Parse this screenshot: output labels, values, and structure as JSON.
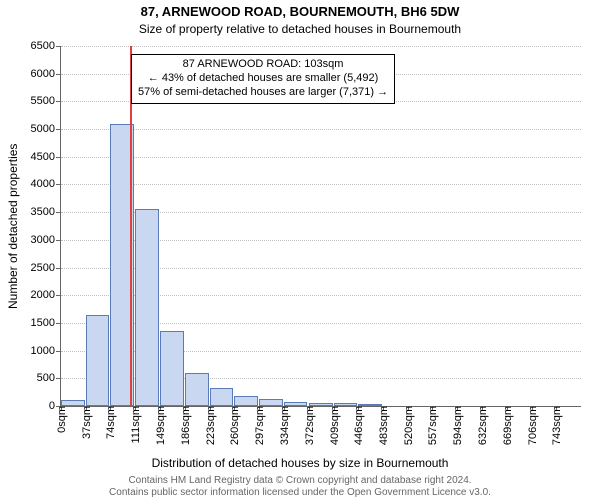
{
  "title_line1": "87, ARNEWOOD ROAD, BOURNEMOUTH, BH6 5DW",
  "title_line2": "Size of property relative to detached houses in Bournemouth",
  "ylabel": "Number of detached properties",
  "xlabel": "Distribution of detached houses by size in Bournemouth",
  "footer_line1": "Contains HM Land Registry data © Crown copyright and database right 2024.",
  "footer_line2": "Contains public sector information licensed under the Open Government Licence v3.0.",
  "title_fontsize": 13,
  "subtitle_fontsize": 12,
  "axis_label_fontsize": 12,
  "tick_fontsize": 11,
  "footer_fontsize": 10,
  "anno_fontsize": 11,
  "plot": {
    "x_min": 0,
    "x_max": 780,
    "y_min": 0,
    "y_max": 6500,
    "grid_color": "#bfbfbf",
    "axis_color": "#666666",
    "background": "#ffffff"
  },
  "x_ticks": [
    {
      "v": 0,
      "label": "0sqm"
    },
    {
      "v": 37,
      "label": "37sqm"
    },
    {
      "v": 74,
      "label": "74sqm"
    },
    {
      "v": 111,
      "label": "111sqm"
    },
    {
      "v": 149,
      "label": "149sqm"
    },
    {
      "v": 186,
      "label": "186sqm"
    },
    {
      "v": 223,
      "label": "223sqm"
    },
    {
      "v": 260,
      "label": "260sqm"
    },
    {
      "v": 297,
      "label": "297sqm"
    },
    {
      "v": 334,
      "label": "334sqm"
    },
    {
      "v": 372,
      "label": "372sqm"
    },
    {
      "v": 409,
      "label": "409sqm"
    },
    {
      "v": 446,
      "label": "446sqm"
    },
    {
      "v": 483,
      "label": "483sqm"
    },
    {
      "v": 520,
      "label": "520sqm"
    },
    {
      "v": 557,
      "label": "557sqm"
    },
    {
      "v": 594,
      "label": "594sqm"
    },
    {
      "v": 632,
      "label": "632sqm"
    },
    {
      "v": 669,
      "label": "669sqm"
    },
    {
      "v": 706,
      "label": "706sqm"
    },
    {
      "v": 743,
      "label": "743sqm"
    }
  ],
  "y_ticks": [
    {
      "v": 0,
      "label": "0"
    },
    {
      "v": 500,
      "label": "500"
    },
    {
      "v": 1000,
      "label": "1000"
    },
    {
      "v": 1500,
      "label": "1500"
    },
    {
      "v": 2000,
      "label": "2000"
    },
    {
      "v": 2500,
      "label": "2500"
    },
    {
      "v": 3000,
      "label": "3000"
    },
    {
      "v": 3500,
      "label": "3500"
    },
    {
      "v": 4000,
      "label": "4000"
    },
    {
      "v": 4500,
      "label": "4500"
    },
    {
      "v": 5000,
      "label": "5000"
    },
    {
      "v": 5500,
      "label": "5500"
    },
    {
      "v": 6000,
      "label": "6000"
    },
    {
      "v": 6500,
      "label": "6500"
    }
  ],
  "bar_fill": "#c9d8f0",
  "bar_stroke": "#5b7bb8",
  "bar_width_value": 37,
  "bars": [
    {
      "x": 0,
      "y": 100
    },
    {
      "x": 37,
      "y": 1650
    },
    {
      "x": 74,
      "y": 5100
    },
    {
      "x": 111,
      "y": 3550
    },
    {
      "x": 149,
      "y": 1350
    },
    {
      "x": 186,
      "y": 590
    },
    {
      "x": 223,
      "y": 330
    },
    {
      "x": 260,
      "y": 180
    },
    {
      "x": 297,
      "y": 120
    },
    {
      "x": 334,
      "y": 80
    },
    {
      "x": 372,
      "y": 60
    },
    {
      "x": 409,
      "y": 50
    },
    {
      "x": 446,
      "y": 30
    }
  ],
  "marker": {
    "value": 103,
    "color": "#e04040"
  },
  "anno": {
    "line1": "87 ARNEWOOD ROAD: 103sqm",
    "line2": "← 43% of detached houses are smaller (5,492)",
    "line3": "57% of semi-detached houses are larger (7,371) →",
    "left_value": 105,
    "top_value_y": 6350,
    "border": "#000000",
    "background": "#ffffff"
  }
}
